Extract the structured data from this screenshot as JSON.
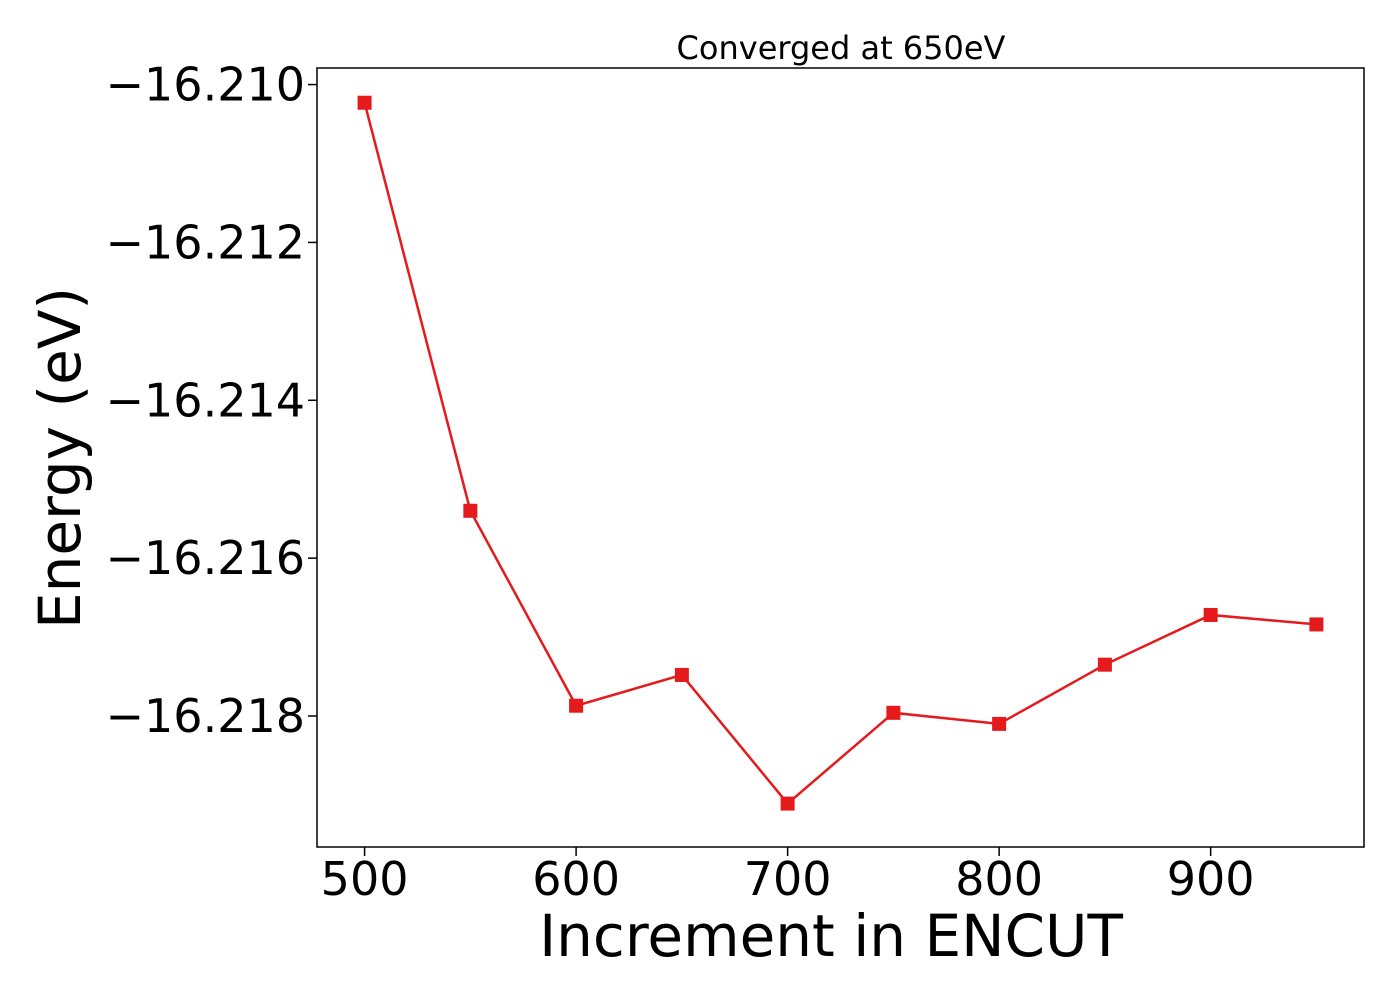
{
  "chart_data": {
    "type": "line",
    "title": "Converged at 650eV",
    "xlabel": "Increment in ENCUT",
    "ylabel": "Energy (eV)",
    "x": [
      500,
      550,
      600,
      650,
      700,
      750,
      800,
      850,
      900,
      950
    ],
    "series": [
      {
        "values": [
          -16.21023,
          -16.2154,
          -16.21787,
          -16.21748,
          -16.21911,
          -16.21796,
          -16.2181,
          -16.21735,
          -16.21672,
          -16.21684
        ],
        "color": "#e41a1c",
        "marker": "square"
      }
    ],
    "xlim": [
      477.5,
      972.5
    ],
    "ylim": [
      -16.21966,
      -16.20979
    ],
    "x_ticks": [
      {
        "value": 500,
        "label": "500"
      },
      {
        "value": 600,
        "label": "600"
      },
      {
        "value": 700,
        "label": "700"
      },
      {
        "value": 800,
        "label": "800"
      },
      {
        "value": 900,
        "label": "900"
      }
    ],
    "y_ticks": [
      {
        "value": -16.21,
        "label": "−16.210"
      },
      {
        "value": -16.212,
        "label": "−16.212"
      },
      {
        "value": -16.214,
        "label": "−16.214"
      },
      {
        "value": -16.216,
        "label": "−16.216"
      },
      {
        "value": -16.218,
        "label": "−16.218"
      }
    ],
    "grid": false,
    "legend": false
  }
}
